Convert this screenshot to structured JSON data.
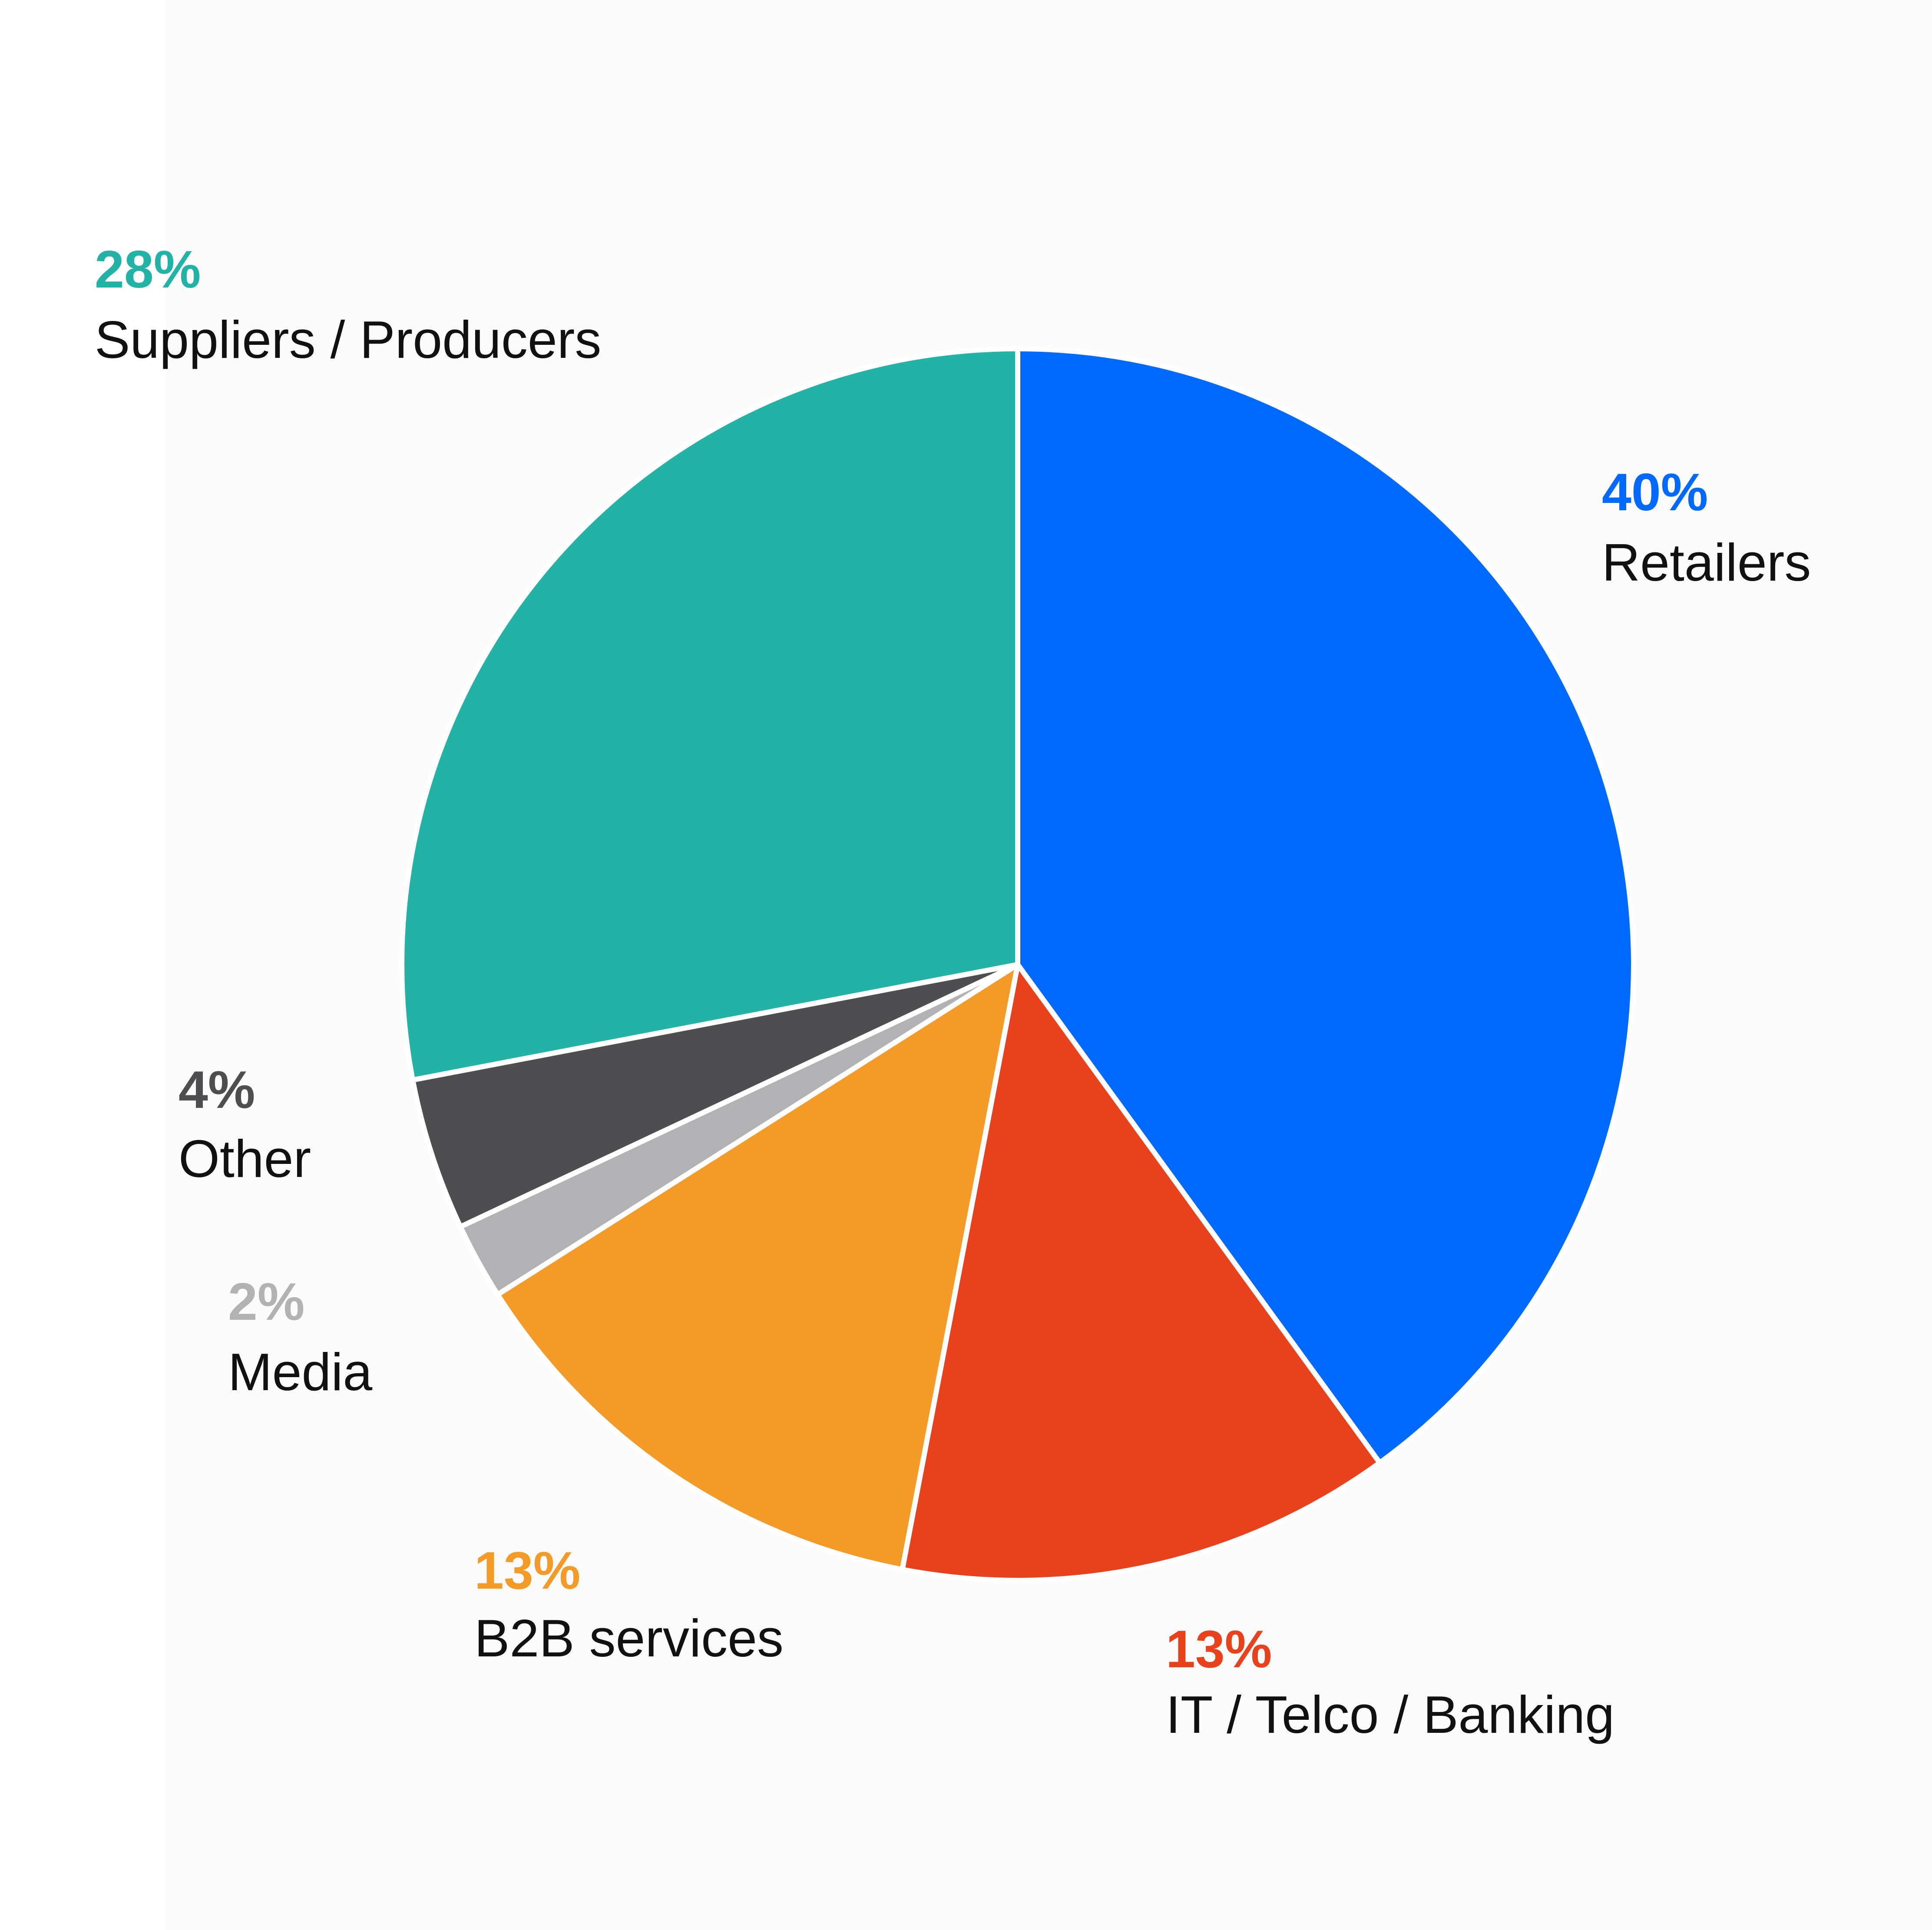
{
  "chart_data": {
    "type": "pie",
    "categories": [
      "Retailers",
      "IT / Telco / Banking",
      "B2B services",
      "Media",
      "Other",
      "Suppliers / Producers"
    ],
    "values": [
      40,
      13,
      13,
      2,
      4,
      28
    ],
    "value_labels": [
      "40%",
      "13%",
      "13%",
      "2%",
      "4%",
      "28%"
    ],
    "colors": [
      "#0069ff",
      "#e8411b",
      "#f39a27",
      "#b2b1b3",
      "#4e4d50",
      "#22b2a6"
    ]
  }
}
